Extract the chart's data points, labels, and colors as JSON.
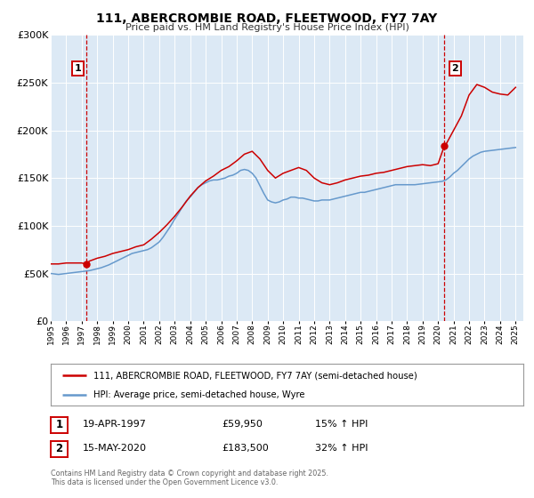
{
  "title": "111, ABERCROMBIE ROAD, FLEETWOOD, FY7 7AY",
  "subtitle": "Price paid vs. HM Land Registry's House Price Index (HPI)",
  "background_color": "#ffffff",
  "plot_bg_color": "#dce9f5",
  "grid_color": "#ffffff",
  "red_line_color": "#cc0000",
  "blue_line_color": "#6699cc",
  "marker_color": "#cc0000",
  "dashed_line_color": "#cc0000",
  "ylim": [
    0,
    300000
  ],
  "yticks": [
    0,
    50000,
    100000,
    150000,
    200000,
    250000,
    300000
  ],
  "xlim_start": 1995.0,
  "xlim_end": 2025.5,
  "sale1_x": 1997.3,
  "sale1_y": 59950,
  "sale1_label": "1",
  "sale1_date": "19-APR-1997",
  "sale1_price": "£59,950",
  "sale1_hpi": "15% ↑ HPI",
  "sale2_x": 2020.4,
  "sale2_y": 183500,
  "sale2_label": "2",
  "sale2_date": "15-MAY-2020",
  "sale2_price": "£183,500",
  "sale2_hpi": "32% ↑ HPI",
  "legend_line1": "111, ABERCROMBIE ROAD, FLEETWOOD, FY7 7AY (semi-detached house)",
  "legend_line2": "HPI: Average price, semi-detached house, Wyre",
  "footnote": "Contains HM Land Registry data © Crown copyright and database right 2025.\nThis data is licensed under the Open Government Licence v3.0.",
  "hpi_data_x": [
    1995.0,
    1995.25,
    1995.5,
    1995.75,
    1996.0,
    1996.25,
    1996.5,
    1996.75,
    1997.0,
    1997.25,
    1997.5,
    1997.75,
    1998.0,
    1998.25,
    1998.5,
    1998.75,
    1999.0,
    1999.25,
    1999.5,
    1999.75,
    2000.0,
    2000.25,
    2000.5,
    2000.75,
    2001.0,
    2001.25,
    2001.5,
    2001.75,
    2002.0,
    2002.25,
    2002.5,
    2002.75,
    2003.0,
    2003.25,
    2003.5,
    2003.75,
    2004.0,
    2004.25,
    2004.5,
    2004.75,
    2005.0,
    2005.25,
    2005.5,
    2005.75,
    2006.0,
    2006.25,
    2006.5,
    2006.75,
    2007.0,
    2007.25,
    2007.5,
    2007.75,
    2008.0,
    2008.25,
    2008.5,
    2008.75,
    2009.0,
    2009.25,
    2009.5,
    2009.75,
    2010.0,
    2010.25,
    2010.5,
    2010.75,
    2011.0,
    2011.25,
    2011.5,
    2011.75,
    2012.0,
    2012.25,
    2012.5,
    2012.75,
    2013.0,
    2013.25,
    2013.5,
    2013.75,
    2014.0,
    2014.25,
    2014.5,
    2014.75,
    2015.0,
    2015.25,
    2015.5,
    2015.75,
    2016.0,
    2016.25,
    2016.5,
    2016.75,
    2017.0,
    2017.25,
    2017.5,
    2017.75,
    2018.0,
    2018.25,
    2018.5,
    2018.75,
    2019.0,
    2019.25,
    2019.5,
    2019.75,
    2020.0,
    2020.25,
    2020.5,
    2020.75,
    2021.0,
    2021.25,
    2021.5,
    2021.75,
    2022.0,
    2022.25,
    2022.5,
    2022.75,
    2023.0,
    2023.25,
    2023.5,
    2023.75,
    2024.0,
    2024.25,
    2024.5,
    2024.75,
    2025.0
  ],
  "hpi_data_y": [
    50000,
    49500,
    49000,
    49500,
    50000,
    50500,
    51000,
    51500,
    52000,
    52500,
    53000,
    54000,
    55000,
    56000,
    57500,
    59000,
    61000,
    63000,
    65000,
    67000,
    69000,
    71000,
    72000,
    73000,
    74000,
    75000,
    77000,
    80000,
    83000,
    88000,
    94000,
    100000,
    107000,
    113000,
    120000,
    126000,
    130000,
    135000,
    140000,
    143000,
    145000,
    147000,
    148000,
    148000,
    149000,
    150000,
    152000,
    153000,
    155000,
    158000,
    159000,
    158000,
    155000,
    150000,
    142000,
    134000,
    127000,
    125000,
    124000,
    125000,
    127000,
    128000,
    130000,
    130000,
    129000,
    129000,
    128000,
    127000,
    126000,
    126000,
    127000,
    127000,
    127000,
    128000,
    129000,
    130000,
    131000,
    132000,
    133000,
    134000,
    135000,
    135000,
    136000,
    137000,
    138000,
    139000,
    140000,
    141000,
    142000,
    143000,
    143000,
    143000,
    143000,
    143000,
    143000,
    143500,
    144000,
    144500,
    145000,
    145500,
    146000,
    146500,
    148000,
    151000,
    155000,
    158000,
    162000,
    166000,
    170000,
    173000,
    175000,
    177000,
    178000,
    178500,
    179000,
    179500,
    180000,
    180500,
    181000,
    181500,
    182000
  ],
  "red_data_x": [
    1995.0,
    1995.5,
    1996.0,
    1996.5,
    1997.0,
    1997.3,
    1997.5,
    1998.0,
    1998.5,
    1999.0,
    1999.5,
    2000.0,
    2000.5,
    2001.0,
    2001.5,
    2002.0,
    2002.5,
    2003.0,
    2003.5,
    2004.0,
    2004.5,
    2005.0,
    2005.5,
    2006.0,
    2006.5,
    2007.0,
    2007.5,
    2008.0,
    2008.5,
    2009.0,
    2009.5,
    2010.0,
    2010.5,
    2011.0,
    2011.5,
    2012.0,
    2012.5,
    2013.0,
    2013.5,
    2014.0,
    2014.5,
    2015.0,
    2015.5,
    2016.0,
    2016.5,
    2017.0,
    2017.5,
    2018.0,
    2018.5,
    2019.0,
    2019.5,
    2020.0,
    2020.4,
    2020.5,
    2021.0,
    2021.5,
    2022.0,
    2022.5,
    2023.0,
    2023.5,
    2024.0,
    2024.5,
    2025.0
  ],
  "red_data_y": [
    60000,
    60000,
    61000,
    61000,
    61000,
    59950,
    63000,
    66000,
    68000,
    71000,
    73000,
    75000,
    78000,
    80000,
    86000,
    93000,
    101000,
    110000,
    120000,
    131000,
    140000,
    147000,
    152000,
    158000,
    162000,
    168000,
    175000,
    178000,
    170000,
    158000,
    150000,
    155000,
    158000,
    161000,
    158000,
    150000,
    145000,
    143000,
    145000,
    148000,
    150000,
    152000,
    153000,
    155000,
    156000,
    158000,
    160000,
    162000,
    163000,
    164000,
    163000,
    165000,
    183500,
    185000,
    200000,
    215000,
    237000,
    248000,
    245000,
    240000,
    238000,
    237000,
    245000
  ]
}
